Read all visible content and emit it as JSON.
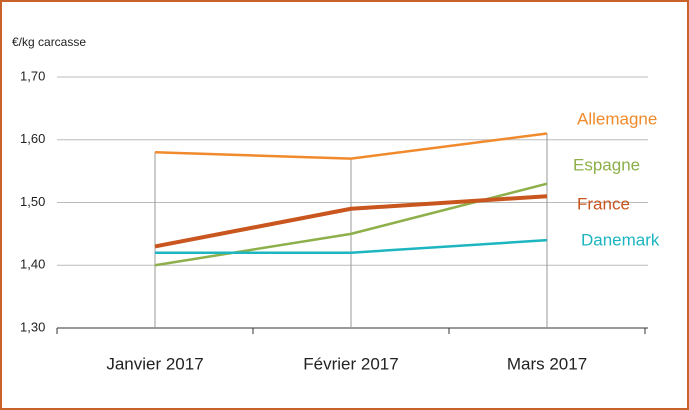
{
  "chart_data": {
    "type": "line",
    "y_axis_label": "€/kg carcasse",
    "categories": [
      "Janvier 2017",
      "Février 2017",
      "Mars 2017"
    ],
    "series": [
      {
        "name": "Allemagne",
        "color": "#f08a2c",
        "values": [
          1.58,
          1.57,
          1.61
        ]
      },
      {
        "name": "Espagne",
        "color": "#8db04a",
        "values": [
          1.4,
          1.45,
          1.53
        ]
      },
      {
        "name": "France",
        "color": "#c8561e",
        "values": [
          1.43,
          1.49,
          1.51
        ]
      },
      {
        "name": "Danemark",
        "color": "#1cb5c0",
        "values": [
          1.42,
          1.42,
          1.44
        ]
      }
    ],
    "ylim": [
      1.3,
      1.7
    ],
    "yticks": [
      {
        "value": 1.3,
        "label": "1,30"
      },
      {
        "value": 1.4,
        "label": "1,40"
      },
      {
        "value": 1.5,
        "label": "1,50"
      },
      {
        "value": 1.6,
        "label": "1,60"
      },
      {
        "value": 1.7,
        "label": "1,70"
      }
    ],
    "grid": true
  }
}
